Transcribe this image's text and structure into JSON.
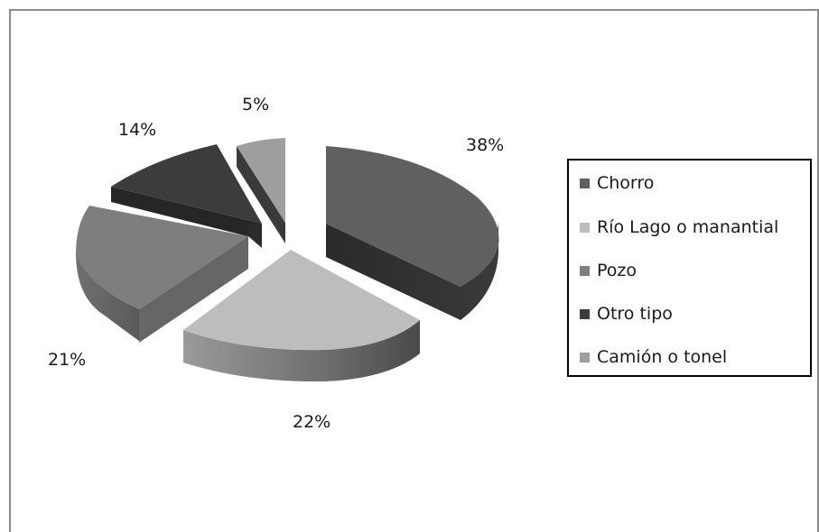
{
  "chart_data": {
    "type": "pie",
    "style": "3d-exploded",
    "categories": [
      "Chorro",
      "Río Lago o manantial",
      "Pozo",
      "Otro tipo",
      "Camión o tonel"
    ],
    "values": [
      38,
      22,
      21,
      14,
      5
    ],
    "labels": [
      "38%",
      "22%",
      "21%",
      "14%",
      "5%"
    ],
    "colors": [
      "#606060",
      "#bdbdbd",
      "#7e7e7e",
      "#3c3c3c",
      "#9e9e9e"
    ],
    "legend_position": "right"
  }
}
